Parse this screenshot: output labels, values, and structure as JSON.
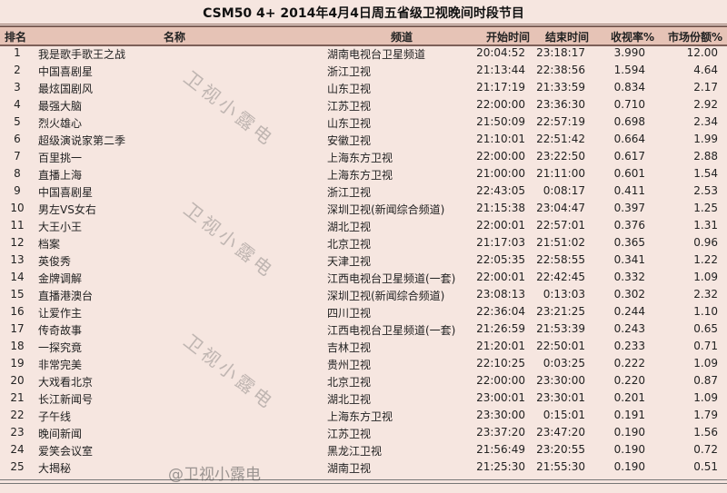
{
  "title": "CSM50 4+ 2014年4月4日周五省级卫视晚间时段节目",
  "columns": [
    "排名",
    "名称",
    "频道",
    "开始时间",
    "结束时间",
    "收视率%",
    "市场份额%"
  ],
  "rows": [
    [
      "1",
      "我是歌手歌王之战",
      "湖南电视台卫星频道",
      "20:04:52",
      "23:18:17",
      "3.990",
      "12.00"
    ],
    [
      "2",
      "中国喜剧星",
      "浙江卫视",
      "21:13:44",
      "22:38:56",
      "1.594",
      "4.64"
    ],
    [
      "3",
      "最炫国剧风",
      "山东卫视",
      "21:17:19",
      "21:33:59",
      "0.834",
      "2.17"
    ],
    [
      "4",
      "最强大脑",
      "江苏卫视",
      "22:00:00",
      "23:36:30",
      "0.710",
      "2.92"
    ],
    [
      "5",
      "烈火雄心",
      "山东卫视",
      "21:50:09",
      "22:57:19",
      "0.698",
      "2.34"
    ],
    [
      "6",
      "超级演说家第二季",
      "安徽卫视",
      "21:10:01",
      "22:51:42",
      "0.664",
      "1.99"
    ],
    [
      "7",
      "百里挑一",
      "上海东方卫视",
      "22:00:00",
      "23:22:50",
      "0.617",
      "2.88"
    ],
    [
      "8",
      "直播上海",
      "上海东方卫视",
      "21:00:00",
      "21:11:00",
      "0.601",
      "1.54"
    ],
    [
      "9",
      "中国喜剧星",
      "浙江卫视",
      "22:43:05",
      "0:08:17",
      "0.411",
      "2.53"
    ],
    [
      "10",
      "男左VS女右",
      "深圳卫视(新闻综合频道)",
      "21:15:38",
      "23:04:47",
      "0.397",
      "1.25"
    ],
    [
      "11",
      "大王小王",
      "湖北卫视",
      "22:00:01",
      "22:57:01",
      "0.376",
      "1.31"
    ],
    [
      "12",
      "档案",
      "北京卫视",
      "21:17:03",
      "21:51:02",
      "0.365",
      "0.96"
    ],
    [
      "13",
      "英俊秀",
      "天津卫视",
      "22:05:35",
      "22:58:55",
      "0.341",
      "1.22"
    ],
    [
      "14",
      "金牌调解",
      "江西电视台卫星频道(一套)",
      "22:00:01",
      "22:42:45",
      "0.332",
      "1.09"
    ],
    [
      "15",
      "直播港澳台",
      "深圳卫视(新闻综合频道)",
      "23:08:13",
      "0:13:03",
      "0.302",
      "2.32"
    ],
    [
      "16",
      "让爱作主",
      "四川卫视",
      "22:36:04",
      "23:21:25",
      "0.244",
      "1.10"
    ],
    [
      "17",
      "传奇故事",
      "江西电视台卫星频道(一套)",
      "21:26:59",
      "21:53:39",
      "0.243",
      "0.65"
    ],
    [
      "18",
      "一探究竟",
      "吉林卫视",
      "21:20:01",
      "22:50:01",
      "0.233",
      "0.71"
    ],
    [
      "19",
      "非常完美",
      "贵州卫视",
      "22:10:25",
      "0:03:25",
      "0.222",
      "1.09"
    ],
    [
      "20",
      "大戏看北京",
      "北京卫视",
      "22:00:00",
      "23:30:00",
      "0.220",
      "0.87"
    ],
    [
      "21",
      "长江新闻号",
      "湖北卫视",
      "23:00:01",
      "23:30:01",
      "0.201",
      "1.09"
    ],
    [
      "22",
      "子午线",
      "上海东方卫视",
      "23:30:00",
      "0:15:01",
      "0.191",
      "1.79"
    ],
    [
      "23",
      "晚间新闻",
      "江苏卫视",
      "23:37:20",
      "23:47:20",
      "0.190",
      "1.56"
    ],
    [
      "24",
      "爱笑会议室",
      "黑龙江卫视",
      "21:56:49",
      "23:20:55",
      "0.190",
      "0.72"
    ],
    [
      "25",
      "大揭秘",
      "湖南卫视",
      "21:25:30",
      "21:55:30",
      "0.190",
      "0.51"
    ]
  ],
  "watermark": "卫视小露电",
  "watermark_bottom": "@卫视小露电",
  "colors": {
    "background": "#f6e6e0",
    "header": "#e6c3b6"
  }
}
